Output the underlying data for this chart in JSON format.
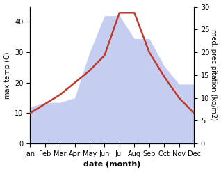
{
  "months": [
    "Jan",
    "Feb",
    "Mar",
    "Apr",
    "May",
    "Jun",
    "Jul",
    "Aug",
    "Sep",
    "Oct",
    "Nov",
    "Dec"
  ],
  "temp": [
    10,
    13,
    16,
    20,
    24,
    29,
    43,
    43,
    30,
    22,
    15,
    10
  ],
  "precip": [
    8,
    9,
    9,
    10,
    20,
    28,
    28,
    23,
    23,
    17,
    13,
    13
  ],
  "temp_color": "#c0392b",
  "precip_fill_color": "#c5cef0",
  "ylabel_left": "max temp (C)",
  "ylabel_right": "med. precipitation (kg/m2)",
  "xlabel": "date (month)",
  "ylim_left": [
    0,
    45
  ],
  "ylim_right": [
    0,
    30
  ],
  "yticks_left": [
    0,
    10,
    20,
    30,
    40
  ],
  "yticks_right": [
    0,
    5,
    10,
    15,
    20,
    25,
    30
  ],
  "background_color": "#ffffff",
  "temp_linewidth": 1.8,
  "xlabel_fontsize": 8,
  "ylabel_fontsize": 7,
  "tick_fontsize": 7
}
